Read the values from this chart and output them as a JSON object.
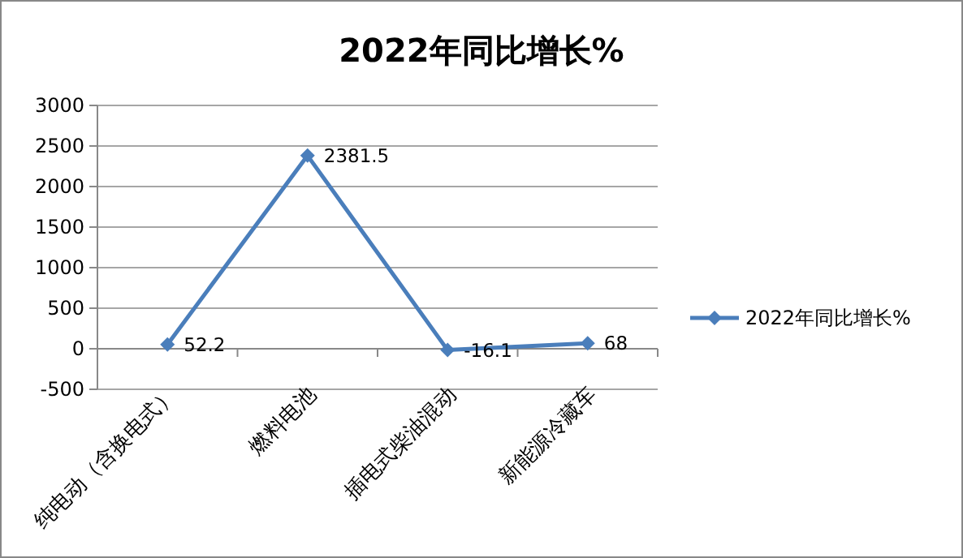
{
  "chart_data": {
    "type": "line",
    "title": "2022年同比增长%",
    "categories": [
      "纯电动（含换电式）",
      "燃料电池",
      "插电式柴油混动",
      "新能源冷藏车"
    ],
    "series": [
      {
        "name": "2022年同比增长%",
        "color": "#4a7ebb",
        "values": [
          52.2,
          2381.5,
          -16.1,
          68
        ]
      }
    ],
    "ylim": [
      -500,
      3000
    ],
    "yticks": [
      -500,
      0,
      500,
      1000,
      1500,
      2000,
      2500,
      3000
    ],
    "grid": "y",
    "legend": "right",
    "marker": "diamond",
    "line_style": "solid",
    "data_labels": true
  }
}
